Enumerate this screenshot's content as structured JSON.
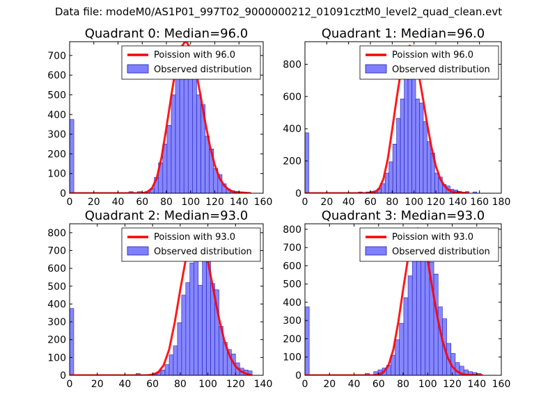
{
  "suptitle": "Data file: modeM0/AS1P01_997T02_9000000212_01091cztM0_level2_quad_clean.evt",
  "legend": {
    "observed": "Observed distribution"
  },
  "colors": {
    "hist_fill": "#7f7fff",
    "hist_edge": "#1f1fb4",
    "poisson_line": "#ff0000"
  },
  "chart_data": [
    {
      "type": "bar",
      "title": "Quadrant 0: Median=96.0",
      "median": 96.0,
      "poisson_label": "Poission with 96.0",
      "xlim": [
        0,
        160
      ],
      "ylim": [
        0,
        770
      ],
      "xticks": [
        0,
        20,
        40,
        60,
        80,
        100,
        120,
        140,
        160
      ],
      "yticks": [
        0,
        100,
        200,
        300,
        400,
        500,
        600,
        700
      ],
      "bin_width": 3.5,
      "bins": [
        [
          0,
          375
        ],
        [
          49,
          8
        ],
        [
          56,
          8
        ],
        [
          63,
          10
        ],
        [
          66.5,
          25
        ],
        [
          70,
          80
        ],
        [
          73.5,
          155
        ],
        [
          77,
          250
        ],
        [
          80.5,
          345
        ],
        [
          84,
          500
        ],
        [
          87.5,
          595
        ],
        [
          91,
          690
        ],
        [
          94.5,
          720
        ],
        [
          98,
          680
        ],
        [
          101.5,
          640
        ],
        [
          105,
          500
        ],
        [
          108.5,
          450
        ],
        [
          112,
          290
        ],
        [
          115.5,
          225
        ],
        [
          119,
          125
        ],
        [
          122.5,
          95
        ],
        [
          126,
          48
        ],
        [
          129.5,
          22
        ],
        [
          133,
          13
        ],
        [
          136.5,
          8
        ]
      ],
      "poisson_x": [
        0,
        60,
        64,
        68,
        72,
        76,
        80,
        84,
        88,
        92,
        96,
        100,
        104,
        108,
        112,
        116,
        120,
        124,
        128,
        132,
        136,
        150
      ],
      "poisson_y": [
        0,
        0,
        6,
        24,
        76,
        182,
        333,
        495,
        645,
        740,
        775,
        735,
        635,
        505,
        365,
        240,
        142,
        76,
        37,
        16,
        6,
        0
      ]
    },
    {
      "type": "bar",
      "title": "Quadrant 1: Median=96.0",
      "median": 96.0,
      "poisson_label": "Poission with 96.0",
      "xlim": [
        0,
        180
      ],
      "ylim": [
        0,
        940
      ],
      "xticks": [
        0,
        20,
        40,
        60,
        80,
        100,
        120,
        140,
        160,
        180
      ],
      "yticks": [
        0,
        200,
        400,
        600,
        800
      ],
      "bin_width": 3.5,
      "bins": [
        [
          0,
          375
        ],
        [
          49,
          8
        ],
        [
          56,
          8
        ],
        [
          59.5,
          12
        ],
        [
          63,
          15
        ],
        [
          66.5,
          30
        ],
        [
          70,
          60
        ],
        [
          73.5,
          125
        ],
        [
          77,
          195
        ],
        [
          80.5,
          305
        ],
        [
          84,
          465
        ],
        [
          87.5,
          585
        ],
        [
          91,
          720
        ],
        [
          94.5,
          800
        ],
        [
          98,
          710
        ],
        [
          101.5,
          585
        ],
        [
          105,
          560
        ],
        [
          108.5,
          445
        ],
        [
          112,
          320
        ],
        [
          115.5,
          250
        ],
        [
          119,
          125
        ],
        [
          122.5,
          100
        ],
        [
          126,
          55
        ],
        [
          129.5,
          45
        ],
        [
          133,
          25
        ],
        [
          136.5,
          20
        ],
        [
          140,
          12
        ],
        [
          147,
          10
        ],
        [
          154,
          8
        ]
      ],
      "poisson_x": [
        0,
        60,
        64,
        68,
        72,
        76,
        80,
        84,
        88,
        92,
        96,
        100,
        104,
        108,
        112,
        116,
        120,
        124,
        128,
        132,
        136,
        150
      ],
      "poisson_y": [
        0,
        0,
        7,
        28,
        90,
        215,
        395,
        585,
        760,
        875,
        915,
        870,
        750,
        595,
        430,
        285,
        168,
        90,
        44,
        19,
        7,
        0
      ]
    },
    {
      "type": "bar",
      "title": "Quadrant 2: Median=93.0",
      "median": 93.0,
      "poisson_label": "Poission with 93.0",
      "xlim": [
        0,
        140
      ],
      "ylim": [
        0,
        850
      ],
      "xticks": [
        0,
        20,
        40,
        60,
        80,
        100,
        120,
        140
      ],
      "yticks": [
        0,
        100,
        200,
        300,
        400,
        500,
        600,
        700,
        800
      ],
      "bin_width": 3.0,
      "bins": [
        [
          0,
          375
        ],
        [
          48,
          10
        ],
        [
          60,
          12
        ],
        [
          63,
          20
        ],
        [
          66,
          30
        ],
        [
          69,
          60
        ],
        [
          72,
          115
        ],
        [
          75,
          165
        ],
        [
          78,
          295
        ],
        [
          81,
          450
        ],
        [
          84,
          520
        ],
        [
          87,
          630
        ],
        [
          90,
          700
        ],
        [
          93,
          505
        ],
        [
          96,
          750
        ],
        [
          99,
          675
        ],
        [
          102,
          515
        ],
        [
          105,
          480
        ],
        [
          108,
          275
        ],
        [
          111,
          185
        ],
        [
          114,
          145
        ],
        [
          117,
          120
        ],
        [
          120,
          70
        ],
        [
          123,
          40
        ],
        [
          126,
          30
        ],
        [
          129,
          25
        ]
      ],
      "poisson_x": [
        0,
        56,
        60,
        64,
        68,
        72,
        76,
        80,
        84,
        88,
        92,
        96,
        100,
        104,
        108,
        112,
        116,
        120,
        124,
        128,
        132
      ],
      "poisson_y": [
        0,
        0,
        4,
        16,
        56,
        145,
        295,
        480,
        650,
        775,
        815,
        770,
        640,
        480,
        320,
        192,
        104,
        50,
        22,
        8,
        0
      ]
    },
    {
      "type": "bar",
      "title": "Quadrant 3: Median=93.0",
      "median": 93.0,
      "poisson_label": "Poission with 93.0",
      "xlim": [
        0,
        160
      ],
      "ylim": [
        0,
        830
      ],
      "xticks": [
        0,
        20,
        40,
        60,
        80,
        100,
        120,
        140,
        160
      ],
      "yticks": [
        0,
        100,
        200,
        300,
        400,
        500,
        600,
        700,
        800
      ],
      "bin_width": 3.5,
      "bins": [
        [
          0,
          375
        ],
        [
          49,
          10
        ],
        [
          56,
          20
        ],
        [
          59.5,
          30
        ],
        [
          63,
          40
        ],
        [
          66.5,
          55
        ],
        [
          70,
          110
        ],
        [
          73.5,
          195
        ],
        [
          77,
          285
        ],
        [
          80.5,
          425
        ],
        [
          84,
          545
        ],
        [
          87.5,
          650
        ],
        [
          91,
          790
        ],
        [
          94.5,
          770
        ],
        [
          98,
          725
        ],
        [
          101.5,
          620
        ],
        [
          105,
          555
        ],
        [
          108.5,
          375
        ],
        [
          112,
          310
        ],
        [
          115.5,
          175
        ],
        [
          119,
          120
        ],
        [
          122.5,
          70
        ],
        [
          126,
          50
        ],
        [
          129.5,
          30
        ],
        [
          133,
          20
        ],
        [
          136.5,
          15
        ],
        [
          140,
          10
        ]
      ],
      "poisson_x": [
        0,
        56,
        60,
        64,
        68,
        72,
        76,
        80,
        84,
        88,
        92,
        96,
        100,
        104,
        108,
        112,
        116,
        120,
        124,
        128,
        132,
        145
      ],
      "poisson_y": [
        0,
        0,
        4,
        16,
        54,
        140,
        290,
        470,
        640,
        770,
        805,
        765,
        630,
        470,
        315,
        190,
        102,
        48,
        21,
        8,
        2,
        0
      ]
    }
  ]
}
